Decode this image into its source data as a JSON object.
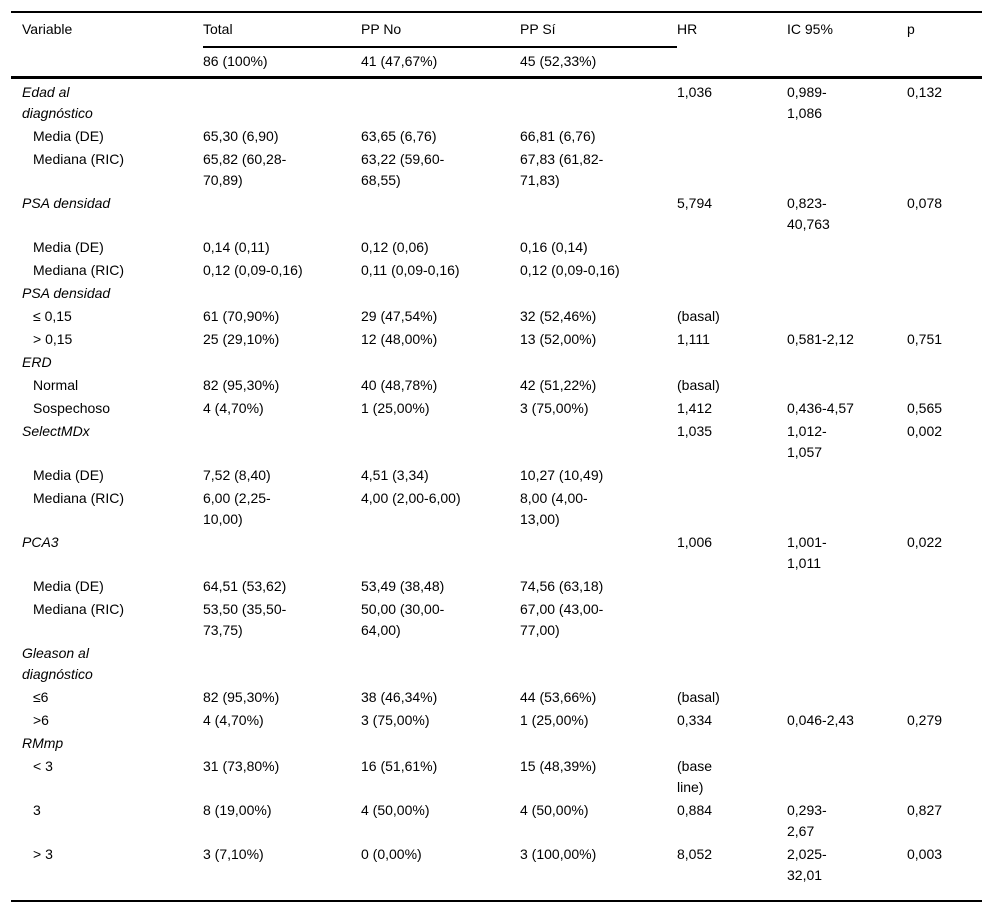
{
  "page": {
    "background_color": "#ffffff",
    "text_color": "#000000",
    "rule_color": "#000000"
  },
  "table": {
    "columns": [
      "Variable",
      "Total",
      "PP No",
      "PP Sí",
      "HR",
      "IC 95%",
      "p"
    ],
    "subheader": [
      "",
      "86 (100%)",
      "41 (47,67%)",
      "45 (52,33%)",
      "",
      "",
      ""
    ],
    "rows": [
      {
        "type": "section",
        "cells": [
          "Edad al\ndiagnóstico",
          "",
          "",
          "",
          "1,036",
          "0,989-\n1,086",
          "0,132"
        ]
      },
      {
        "type": "sub",
        "cells": [
          "Media (DE)",
          "65,30 (6,90)",
          "63,65 (6,76)",
          "66,81 (6,76)",
          "",
          "",
          ""
        ]
      },
      {
        "type": "sub",
        "cells": [
          "Mediana (RIC)",
          "65,82 (60,28-\n70,89)",
          "63,22 (59,60-\n68,55)",
          "67,83 (61,82-\n71,83)",
          "",
          "",
          ""
        ]
      },
      {
        "type": "section",
        "cells": [
          "PSA densidad",
          "",
          "",
          "",
          "5,794",
          "0,823-\n40,763",
          "0,078"
        ]
      },
      {
        "type": "sub",
        "cells": [
          "Media (DE)",
          "0,14 (0,11)",
          "0,12 (0,06)",
          "0,16 (0,14)",
          "",
          "",
          ""
        ]
      },
      {
        "type": "sub",
        "cells": [
          "Mediana (RIC)",
          "0,12 (0,09-0,16)",
          "0,11 (0,09-0,16)",
          "0,12 (0,09-0,16)",
          "",
          "",
          ""
        ]
      },
      {
        "type": "section",
        "cells": [
          "PSA densidad",
          "",
          "",
          "",
          "",
          "",
          ""
        ]
      },
      {
        "type": "sub",
        "cells": [
          "≤ 0,15",
          "61 (70,90%)",
          "29 (47,54%)",
          "32 (52,46%)",
          "(basal)",
          "",
          ""
        ]
      },
      {
        "type": "sub",
        "cells": [
          "> 0,15",
          "25 (29,10%)",
          "12 (48,00%)",
          "13 (52,00%)",
          "1,111",
          "0,581-2,12",
          "0,751"
        ]
      },
      {
        "type": "section",
        "cells": [
          "ERD",
          "",
          "",
          "",
          "",
          "",
          ""
        ]
      },
      {
        "type": "sub",
        "cells": [
          "Normal",
          "82 (95,30%)",
          "40 (48,78%)",
          "42 (51,22%)",
          "(basal)",
          "",
          ""
        ]
      },
      {
        "type": "sub",
        "cells": [
          "Sospechoso",
          "4 (4,70%)",
          "1 (25,00%)",
          "3 (75,00%)",
          "1,412",
          "0,436-4,57",
          "0,565"
        ]
      },
      {
        "type": "section",
        "cells": [
          "SelectMDx",
          "",
          "",
          "",
          "1,035",
          "1,012-\n1,057",
          "0,002"
        ]
      },
      {
        "type": "sub",
        "cells": [
          "Media (DE)",
          "7,52 (8,40)",
          "4,51 (3,34)",
          "10,27 (10,49)",
          "",
          "",
          ""
        ]
      },
      {
        "type": "sub",
        "cells": [
          "Mediana (RIC)",
          "6,00 (2,25-\n10,00)",
          "4,00 (2,00-6,00)",
          "8,00 (4,00-\n13,00)",
          "",
          "",
          ""
        ]
      },
      {
        "type": "section",
        "cells": [
          "PCA3",
          "",
          "",
          "",
          "1,006",
          "1,001-\n1,011",
          "0,022"
        ]
      },
      {
        "type": "sub",
        "cells": [
          "Media (DE)",
          "64,51 (53,62)",
          "53,49 (38,48)",
          "74,56 (63,18)",
          "",
          "",
          ""
        ]
      },
      {
        "type": "sub",
        "cells": [
          "Mediana (RIC)",
          "53,50 (35,50-\n73,75)",
          "50,00 (30,00-\n64,00)",
          "67,00 (43,00-\n77,00)",
          "",
          "",
          ""
        ]
      },
      {
        "type": "section",
        "cells": [
          "Gleason al\ndiagnóstico",
          "",
          "",
          "",
          "",
          "",
          ""
        ]
      },
      {
        "type": "sub",
        "cells": [
          "≤6",
          "82 (95,30%)",
          "38 (46,34%)",
          "44 (53,66%)",
          "(basal)",
          "",
          ""
        ]
      },
      {
        "type": "sub",
        "cells": [
          ">6",
          "4 (4,70%)",
          "3 (75,00%)",
          "1 (25,00%)",
          "0,334",
          "0,046-2,43",
          "0,279"
        ]
      },
      {
        "type": "section",
        "cells": [
          "RMmp",
          "",
          "",
          "",
          "",
          "",
          ""
        ]
      },
      {
        "type": "sub",
        "cells": [
          "< 3",
          "31 (73,80%)",
          "16 (51,61%)",
          "15 (48,39%)",
          "(base\nline)",
          "",
          ""
        ]
      },
      {
        "type": "sub",
        "cells": [
          "3",
          "8 (19,00%)",
          "4 (50,00%)",
          "4 (50,00%)",
          "0,884",
          "0,293-\n2,67",
          "0,827"
        ]
      },
      {
        "type": "sub",
        "cells": [
          "> 3",
          "3 (7,10%)",
          "0 (0,00%)",
          "3 (100,00%)",
          "8,052",
          "2,025-\n32,01",
          "0,003"
        ]
      }
    ]
  }
}
